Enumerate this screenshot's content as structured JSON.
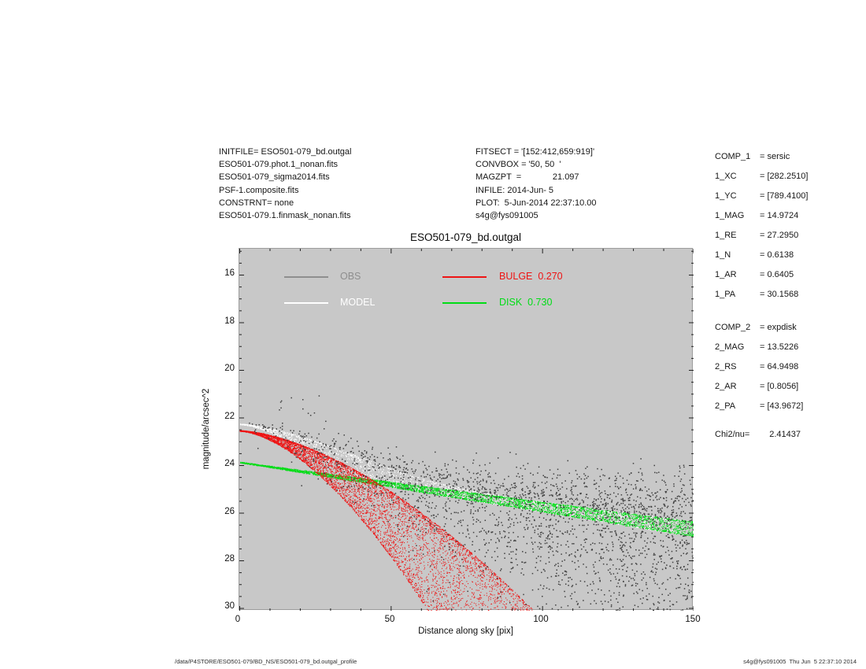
{
  "header": {
    "left_files": [
      "INITFILE= ESO501-079_bd.outgal",
      "ESO501-079.phot.1_nonan.fits",
      "ESO501-079_sigma2014.fits",
      "PSF-1.composite.fits",
      "CONSTRNT= none",
      "ESO501-079.1.finmask_nonan.fits"
    ],
    "fit_info": [
      "FITSECT = '[152:412,659:919]'",
      "CONVBOX = '50, 50  '",
      "MAGZPT  =             21.097",
      "INFILE: 2014-Jun- 5",
      "PLOT:  5-Jun-2014 22:37:10.00",
      "s4g@fys091005"
    ]
  },
  "params": {
    "comp1": {
      "rows": [
        {
          "label": "COMP_1",
          "value": "= sersic"
        },
        {
          "label": "1_XC",
          "value": "= [282.2510]"
        },
        {
          "label": "1_YC",
          "value": "= [789.4100]"
        },
        {
          "label": "1_MAG",
          "value": "= 14.9724"
        },
        {
          "label": "1_RE",
          "value": "= 27.2950"
        },
        {
          "label": "1_N",
          "value": "= 0.6138"
        },
        {
          "label": "1_AR",
          "value": "= 0.6405"
        },
        {
          "label": "1_PA",
          "value": "= 30.1568"
        }
      ]
    },
    "comp2": {
      "rows": [
        {
          "label": "COMP_2",
          "value": "= expdisk"
        },
        {
          "label": "2_MAG",
          "value": "= 13.5226"
        },
        {
          "label": "2_RS",
          "value": "= 64.9498"
        },
        {
          "label": "2_AR",
          "value": "= [0.8056]"
        },
        {
          "label": "2_PA",
          "value": "= [43.9672]"
        }
      ]
    },
    "chi": {
      "label": "Chi2/nu=",
      "value": "    2.41437"
    }
  },
  "chart_data": {
    "type": "scatter",
    "title": "ESO501-079_bd.outgal",
    "xlabel": "Distance along sky [pix]",
    "ylabel": "magnitude/arcsec^2",
    "xlim": [
      0,
      150
    ],
    "ylim_mag": [
      14.9,
      30.15
    ],
    "y_inverted": true,
    "grid": false,
    "background": "#c8c8c8",
    "x_ticks": [
      0,
      50,
      100,
      150
    ],
    "y_ticks": [
      16,
      18,
      20,
      22,
      24,
      26,
      28,
      30
    ],
    "legend": [
      {
        "label": "OBS",
        "color": "#8e8e8e"
      },
      {
        "label": "MODEL",
        "color": "#ffffff"
      },
      {
        "label": "BULGE  0.270",
        "color": "#ee1414"
      },
      {
        "label": "DISK  0.730",
        "color": "#00dd16"
      }
    ],
    "components": {
      "obs": {
        "color": "#3f3f3f",
        "n_points": 2400,
        "sigma0": 0.1,
        "sigma_slope": 0.011
      },
      "model": {
        "color": "#ffffff"
      },
      "bulge": {
        "type": "sersic",
        "fraction": 0.27,
        "color": "#ee1414",
        "mu0": 22.55,
        "k": 0.004369,
        "exp": 1.6292,
        "axis_ratio": 0.6405
      },
      "disk": {
        "type": "expdisk",
        "fraction": 0.73,
        "color": "#00dd16",
        "mu0": 23.87,
        "slope_mag_per_pix": 0.01672,
        "axis_ratio": 0.8056
      }
    },
    "curves": {
      "x_sample": [
        0,
        10,
        20,
        30,
        40,
        50,
        60,
        70,
        80,
        90,
        100,
        110,
        120,
        130,
        140,
        150
      ],
      "model_top_mag": [
        22.27,
        22.45,
        22.79,
        23.21,
        23.67,
        24.12,
        24.52,
        24.85,
        25.11,
        25.33,
        25.52,
        25.7,
        25.88,
        26.05,
        26.21,
        26.38
      ],
      "bulge_major_mag": [
        22.55,
        22.74,
        23.13,
        23.66,
        24.33,
        25.11,
        26.0,
        26.98,
        28.05,
        29.22,
        30.48,
        null,
        null,
        null,
        null,
        null
      ],
      "bulge_minor_mag": [
        22.55,
        22.93,
        23.74,
        24.85,
        26.23,
        27.84,
        29.68,
        null,
        null,
        null,
        null,
        null,
        null,
        null,
        null,
        null
      ],
      "disk_major_mag": [
        23.87,
        24.04,
        24.2,
        24.37,
        24.54,
        24.71,
        24.87,
        25.04,
        25.21,
        25.37,
        25.54,
        25.71,
        25.88,
        26.04,
        26.21,
        26.38
      ],
      "disk_minor_mag": [
        23.87,
        24.08,
        24.29,
        24.49,
        24.7,
        24.91,
        25.12,
        25.32,
        25.53,
        25.74,
        25.95,
        26.15,
        26.36,
        26.57,
        26.78,
        26.98
      ]
    }
  },
  "footer": {
    "left": "/data/P4STORE/ESO501-079/BD_NS/ESO501-079_bd.outgal_profile",
    "right": "s4g@fys091005  Thu Jun  5 22:37:10 2014"
  }
}
